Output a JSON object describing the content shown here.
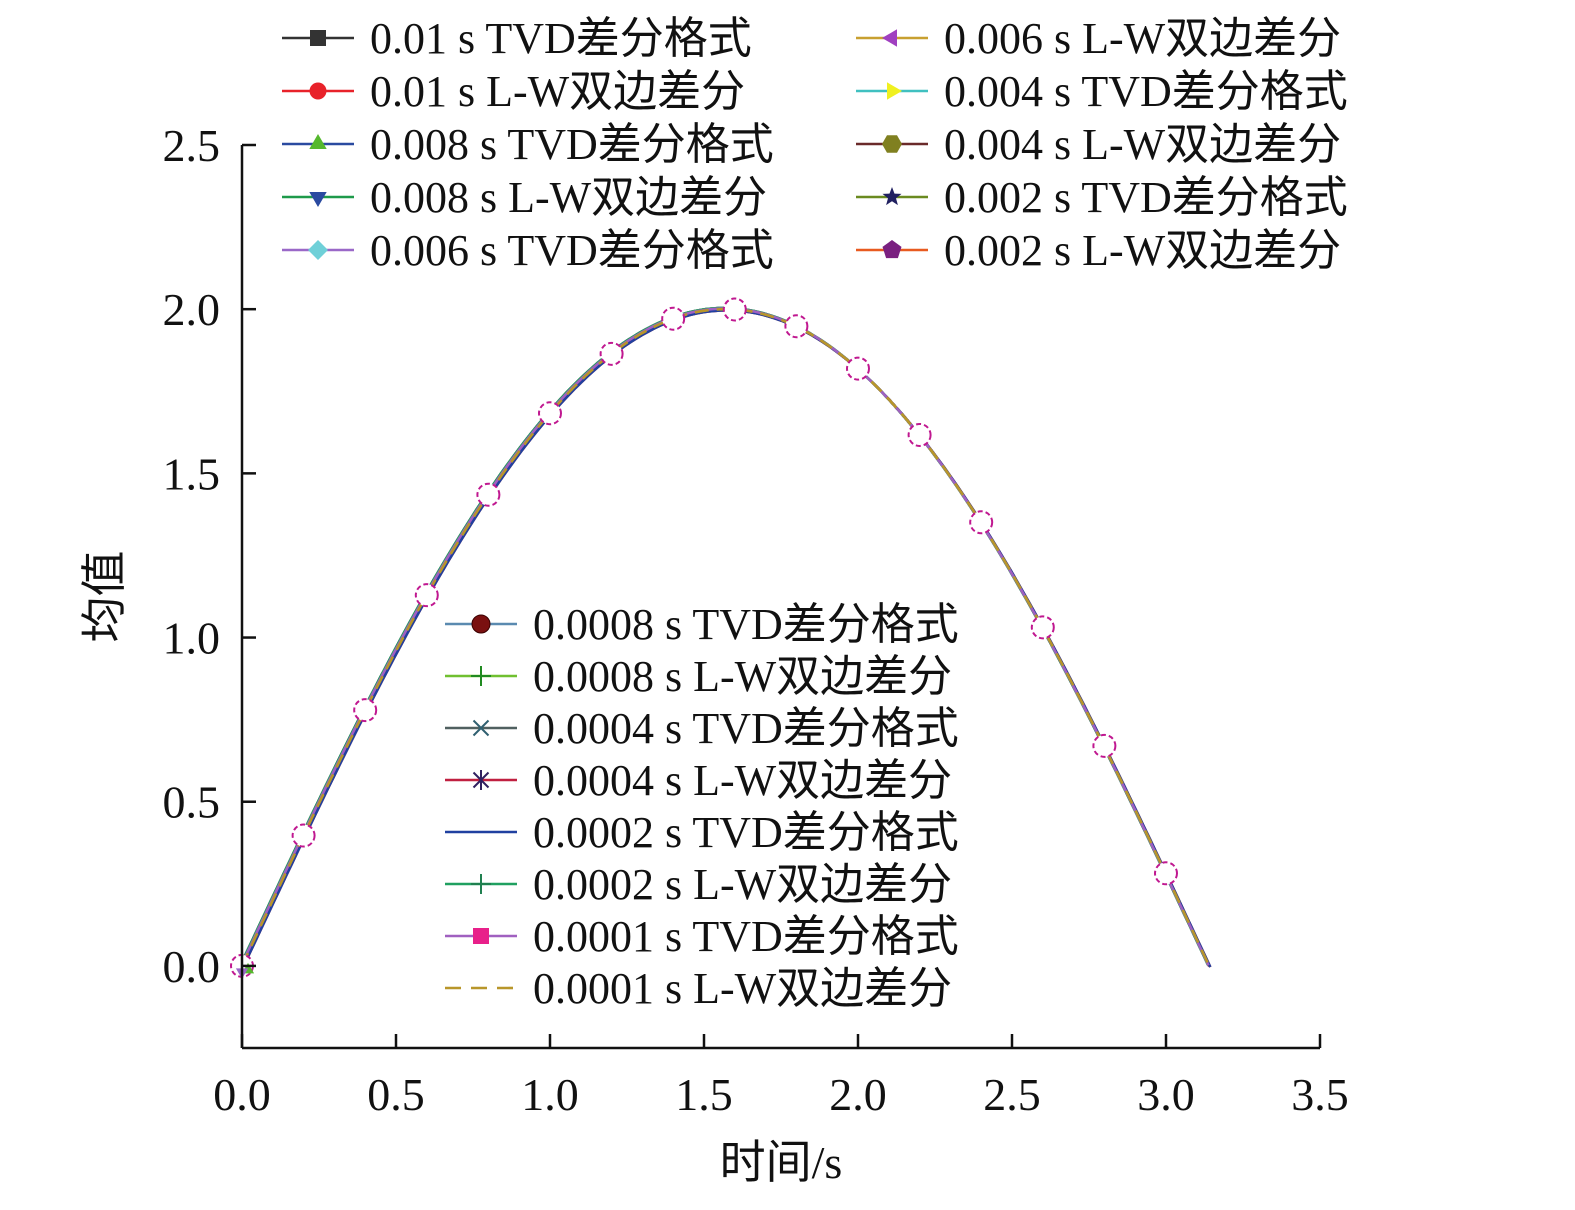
{
  "chart_data": {
    "type": "line",
    "title": "",
    "xlabel": "时间/s",
    "ylabel": "均值",
    "xlim": [
      0,
      3.5
    ],
    "ylim": [
      -0.25,
      2.5
    ],
    "xticks": [
      "0.0",
      "0.5",
      "1.0",
      "1.5",
      "2.0",
      "2.5",
      "3.0",
      "3.5"
    ],
    "yticks": [
      "0.0",
      "0.5",
      "1.0",
      "1.5",
      "2.0",
      "2.5"
    ],
    "grid": false,
    "legend_placement": "top and center",
    "marker_x": [
      0,
      0.2,
      0.4,
      0.6,
      0.8,
      1.0,
      1.2,
      1.4,
      1.6,
      1.8,
      2.0,
      2.2,
      2.4,
      2.6,
      2.8,
      3.0
    ],
    "marker_y": [
      0,
      0.397,
      0.779,
      1.129,
      1.435,
      1.683,
      1.864,
      1.971,
      1.999,
      1.948,
      1.819,
      1.617,
      1.351,
      1.031,
      0.67,
      0.282
    ],
    "curve_x_end": 3.14,
    "series": [
      {
        "name": "0.01 s TVD差分格式",
        "color": "#333333",
        "marker": "square"
      },
      {
        "name": "0.01 s L-W双边差分",
        "color": "#e8222a",
        "marker": "circle"
      },
      {
        "name": "0.008 s TVD差分格式",
        "color": "#2a4aa0",
        "marker": "triangle-up",
        "marker_color": "#55b82e"
      },
      {
        "name": "0.008 s L-W双边差分",
        "color": "#1e9a4a",
        "marker": "triangle-down",
        "marker_color": "#2a4aa0"
      },
      {
        "name": "0.006 s TVD差分格式",
        "color": "#9a68c8",
        "marker": "diamond",
        "marker_color": "#6fd0d8"
      },
      {
        "name": "0.006 s L-W双边差分",
        "color": "#c8a030",
        "marker": "triangle-left",
        "marker_color": "#a040c0"
      },
      {
        "name": "0.004 s TVD差分格式",
        "color": "#40c0c0",
        "marker": "triangle-right",
        "marker_color": "#f0f020"
      },
      {
        "name": "0.004 s L-W双边差分",
        "color": "#6a2a2a",
        "marker": "hexagon",
        "marker_color": "#808020"
      },
      {
        "name": "0.002 s TVD差分格式",
        "color": "#6a8a20",
        "marker": "star",
        "marker_color": "#202060"
      },
      {
        "name": "0.002 s L-W双边差分",
        "color": "#e85a20",
        "marker": "pentagon",
        "marker_color": "#7a2080"
      },
      {
        "name": "0.0008 s TVD差分格式",
        "color": "#5a8ab0",
        "marker": "sphere",
        "marker_color": "#7a1010"
      },
      {
        "name": "0.0008 s L-W双边差分",
        "color": "#70c030",
        "marker": "plus",
        "marker_color": "#208a20"
      },
      {
        "name": "0.0004 s TVD差分格式",
        "color": "#506060",
        "marker": "x",
        "marker_color": "#306070"
      },
      {
        "name": "0.0004 s L-W双边差分",
        "color": "#c02040",
        "marker": "asterisk",
        "marker_color": "#302060"
      },
      {
        "name": "0.0002 s TVD差分格式",
        "color": "#2040a0",
        "marker": "none"
      },
      {
        "name": "0.0002 s L-W双边差分",
        "color": "#20a060",
        "marker": "plus",
        "marker_color": "#208050"
      },
      {
        "name": "0.0001 s TVD差分格式",
        "color": "#a060c0",
        "marker": "square",
        "marker_color": "#e8208a"
      },
      {
        "name": "0.0001 s L-W双边差分",
        "color": "#b8962a",
        "marker": "none",
        "dashed": true
      }
    ]
  }
}
